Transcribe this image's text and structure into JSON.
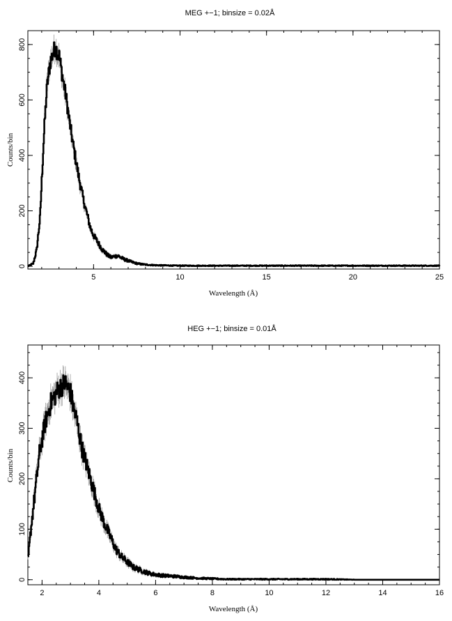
{
  "chart_data": [
    {
      "type": "line",
      "title": "MEG +−1; binsize = 0.02Å",
      "xlabel": "Wavelength (Å)",
      "ylabel": "Counts/bin",
      "xlim": [
        1.2,
        25
      ],
      "ylim": [
        -10,
        850
      ],
      "xticks": [
        5,
        10,
        15,
        20,
        25
      ],
      "yticks": [
        0,
        200,
        400,
        600,
        800
      ],
      "grid": false,
      "series": [
        {
          "x": [
            1.2,
            1.5,
            1.7,
            1.9,
            2.0,
            2.1,
            2.2,
            2.3,
            2.4,
            2.5,
            2.6,
            2.7,
            2.8,
            2.9,
            3.0,
            3.1,
            3.2,
            3.4,
            3.6,
            3.8,
            4.0,
            4.2,
            4.4,
            4.6,
            4.8,
            5.0,
            5.2,
            5.5,
            5.8,
            6.0,
            6.2,
            6.4,
            6.6,
            6.8,
            7.0,
            7.2,
            7.5,
            7.8,
            8.0,
            8.5,
            9.0,
            10.0,
            11.0,
            12.0,
            13.0,
            14.0,
            15.0,
            16.0,
            17.0,
            18.0,
            19.0,
            20.0,
            21.0,
            22.0,
            23.0,
            24.0,
            25.0
          ],
          "y": [
            0,
            10,
            60,
            180,
            320,
            450,
            560,
            650,
            700,
            740,
            760,
            780,
            790,
            770,
            760,
            720,
            680,
            610,
            520,
            440,
            370,
            300,
            240,
            190,
            140,
            110,
            90,
            60,
            40,
            32,
            36,
            38,
            30,
            24,
            20,
            15,
            10,
            7,
            6,
            4,
            3,
            2,
            2,
            2,
            2,
            2,
            2,
            2,
            2,
            2,
            2,
            2,
            2,
            2,
            2,
            2,
            2
          ]
        }
      ]
    },
    {
      "type": "line",
      "title": "HEG +−1; binsize = 0.01Å",
      "xlabel": "Wavelength (Å)",
      "ylabel": "Counts/bin",
      "xlim": [
        1.5,
        16
      ],
      "ylim": [
        -10,
        465
      ],
      "xticks": [
        2,
        4,
        6,
        8,
        10,
        12,
        14,
        16
      ],
      "yticks": [
        0,
        100,
        200,
        300,
        400
      ],
      "grid": false,
      "series": [
        {
          "x": [
            1.5,
            1.6,
            1.7,
            1.8,
            1.9,
            2.0,
            2.1,
            2.2,
            2.3,
            2.4,
            2.5,
            2.6,
            2.7,
            2.8,
            2.9,
            3.0,
            3.1,
            3.2,
            3.3,
            3.4,
            3.5,
            3.6,
            3.8,
            4.0,
            4.2,
            4.4,
            4.6,
            4.8,
            5.0,
            5.2,
            5.5,
            5.8,
            6.0,
            6.3,
            6.6,
            7.0,
            7.5,
            8.0,
            8.5,
            9.0,
            10.0,
            11.0,
            12.0,
            13.0,
            14.0,
            15.0,
            16.0
          ],
          "y": [
            40,
            100,
            150,
            200,
            250,
            280,
            310,
            330,
            350,
            360,
            370,
            380,
            385,
            390,
            380,
            370,
            340,
            320,
            290,
            260,
            240,
            220,
            180,
            140,
            110,
            85,
            60,
            45,
            35,
            25,
            18,
            12,
            10,
            8,
            7,
            5,
            3,
            2,
            1,
            1,
            1,
            1,
            1,
            0,
            0,
            0,
            0
          ]
        }
      ]
    }
  ]
}
